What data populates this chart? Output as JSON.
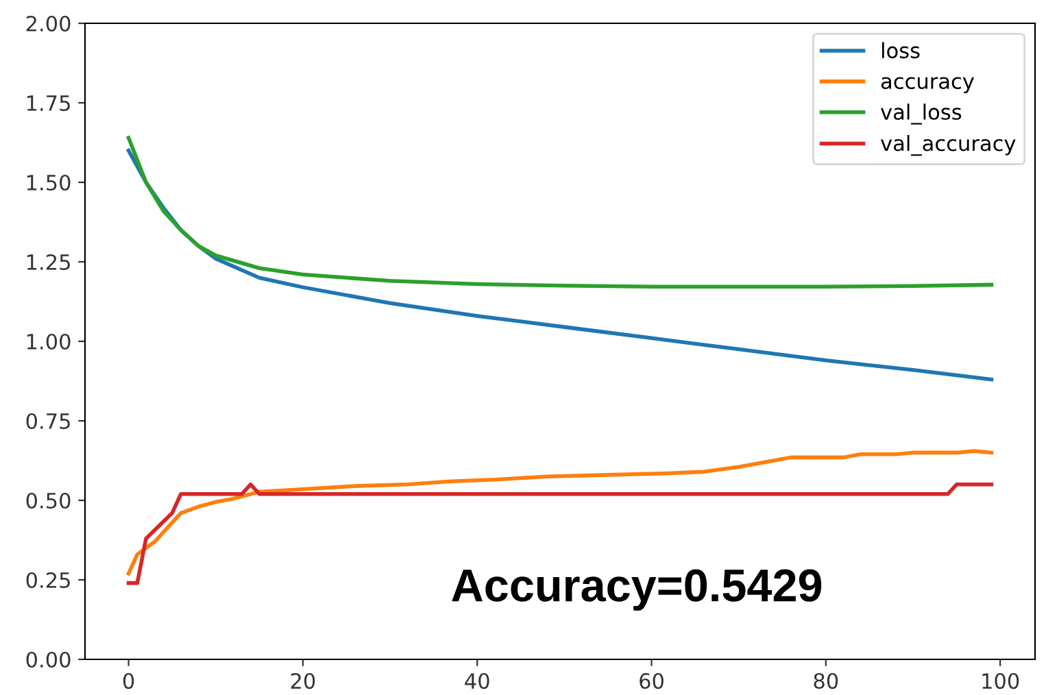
{
  "chart_data": {
    "type": "line",
    "xlim": [
      -5,
      104
    ],
    "ylim": [
      0,
      2
    ],
    "xticks": [
      0,
      20,
      40,
      60,
      80,
      100
    ],
    "yticks": [
      {
        "value": 0,
        "label": "0.00"
      },
      {
        "value": 0.25,
        "label": "0.25"
      },
      {
        "value": 0.5,
        "label": "0.50"
      },
      {
        "value": 0.75,
        "label": "0.75"
      },
      {
        "value": 1,
        "label": "1.00"
      },
      {
        "value": 1.25,
        "label": "1.25"
      },
      {
        "value": 1.5,
        "label": "1.50"
      },
      {
        "value": 1.75,
        "label": "1.75"
      },
      {
        "value": 2,
        "label": "2.00"
      }
    ],
    "grid": false,
    "legend": "top right",
    "marker": "none",
    "line_style": "solid",
    "annotations": [
      "Accuracy=0.5429"
    ],
    "series": [
      {
        "name": "loss",
        "color": "#1f77b4",
        "x": [
          0,
          2,
          4,
          6,
          8,
          10,
          15,
          20,
          30,
          40,
          50,
          60,
          70,
          80,
          90,
          99
        ],
        "values": [
          1.6,
          1.5,
          1.42,
          1.35,
          1.3,
          1.26,
          1.2,
          1.17,
          1.12,
          1.08,
          1.045,
          1.01,
          0.975,
          0.94,
          0.91,
          0.88
        ]
      },
      {
        "name": "accuracy",
        "color": "#ff7f0e",
        "x": [
          0,
          1,
          2,
          3,
          4,
          5,
          6,
          8,
          10,
          12,
          15,
          20,
          26,
          32,
          37,
          42,
          48,
          55,
          62,
          66,
          70,
          74,
          76,
          82,
          84,
          88,
          90,
          95,
          97,
          99
        ],
        "values": [
          0.27,
          0.33,
          0.35,
          0.37,
          0.4,
          0.43,
          0.46,
          0.48,
          0.495,
          0.505,
          0.527,
          0.535,
          0.545,
          0.55,
          0.56,
          0.565,
          0.575,
          0.58,
          0.585,
          0.59,
          0.605,
          0.625,
          0.635,
          0.635,
          0.645,
          0.645,
          0.65,
          0.65,
          0.655,
          0.65
        ]
      },
      {
        "name": "val_loss",
        "color": "#2ca02c",
        "x": [
          0,
          2,
          4,
          6,
          8,
          10,
          15,
          20,
          30,
          40,
          50,
          60,
          70,
          80,
          90,
          99
        ],
        "values": [
          1.64,
          1.5,
          1.41,
          1.35,
          1.3,
          1.27,
          1.23,
          1.21,
          1.19,
          1.18,
          1.175,
          1.172,
          1.172,
          1.172,
          1.174,
          1.178
        ]
      },
      {
        "name": "val_accuracy",
        "color": "#d62728",
        "x": [
          0,
          1,
          2,
          5,
          6,
          13,
          14,
          15,
          94,
          95,
          99
        ],
        "values": [
          0.24,
          0.24,
          0.38,
          0.46,
          0.52,
          0.52,
          0.55,
          0.52,
          0.52,
          0.55,
          0.55
        ]
      }
    ]
  }
}
